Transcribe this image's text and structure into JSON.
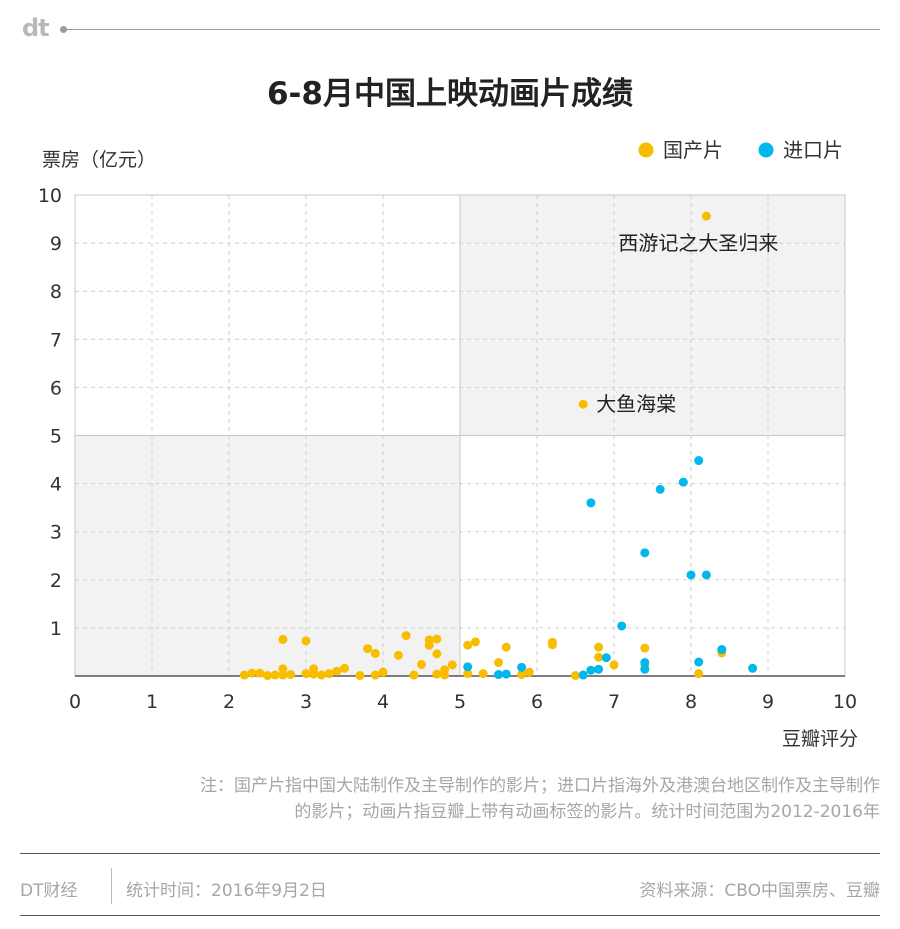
{
  "brand": "dt",
  "title": "6-8月中国上映动画片成绩",
  "note_line1": "注：国产片指中国大陆制作及主导制作的影片；进口片指海外及港澳台地区制作及主导制作",
  "note_line2": "的影片；动画片指豆瓣上带有动画标签的影片。统计时间范围为2012-2016年",
  "footer": {
    "source_left": "DT财经",
    "stat_time": "统计时间：2016年9月2日",
    "data_source": "资料来源：CBO中国票房、豆瓣"
  },
  "colors": {
    "domestic": "#f9bd00",
    "imported": "#00b8ec",
    "shade": "#f2f2f2"
  },
  "chart_data": {
    "type": "scatter",
    "xlabel": "豆瓣评分",
    "ylabel": "票房（亿元）",
    "xlim": [
      0,
      10
    ],
    "ylim": [
      0,
      10
    ],
    "xticks": [
      "0",
      "1",
      "2",
      "3",
      "4",
      "5",
      "6",
      "7",
      "8",
      "9",
      "10"
    ],
    "yticks": [
      "1",
      "2",
      "3",
      "4",
      "5",
      "6",
      "7",
      "8",
      "9",
      "10"
    ],
    "grid": true,
    "legend_position": "top-right",
    "shaded_quadrants": [
      "x 0-5, y 0-5",
      "x 5-10, y 5-10"
    ],
    "series": [
      {
        "name": "国产片",
        "color": "#f9bd00",
        "points": [
          [
            8.2,
            9.56
          ],
          [
            6.6,
            5.65
          ],
          [
            2.2,
            0.02
          ],
          [
            2.3,
            0.06
          ],
          [
            2.4,
            0.06
          ],
          [
            2.5,
            0.01
          ],
          [
            2.6,
            0.02
          ],
          [
            2.7,
            0.15
          ],
          [
            2.7,
            0.76
          ],
          [
            2.7,
            0.02
          ],
          [
            2.8,
            0.03
          ],
          [
            3.0,
            0.73
          ],
          [
            3.0,
            0.05
          ],
          [
            3.1,
            0.04
          ],
          [
            3.1,
            0.15
          ],
          [
            3.2,
            0.02
          ],
          [
            3.3,
            0.05
          ],
          [
            3.4,
            0.1
          ],
          [
            3.5,
            0.16
          ],
          [
            3.7,
            0.01
          ],
          [
            3.8,
            0.57
          ],
          [
            3.9,
            0.47
          ],
          [
            3.9,
            0.02
          ],
          [
            4.0,
            0.08
          ],
          [
            4.2,
            0.43
          ],
          [
            4.3,
            0.84
          ],
          [
            4.4,
            0.02
          ],
          [
            4.5,
            0.24
          ],
          [
            4.6,
            0.75
          ],
          [
            4.6,
            0.64
          ],
          [
            4.7,
            0.77
          ],
          [
            4.7,
            0.46
          ],
          [
            4.7,
            0.04
          ],
          [
            4.8,
            0.13
          ],
          [
            4.8,
            0.02
          ],
          [
            4.9,
            0.23
          ],
          [
            5.1,
            0.64
          ],
          [
            5.1,
            0.05
          ],
          [
            5.2,
            0.71
          ],
          [
            5.3,
            0.05
          ],
          [
            5.5,
            0.28
          ],
          [
            5.6,
            0.6
          ],
          [
            5.8,
            0.03
          ],
          [
            5.9,
            0.08
          ],
          [
            6.2,
            0.7
          ],
          [
            6.2,
            0.65
          ],
          [
            6.5,
            0.01
          ],
          [
            6.8,
            0.6
          ],
          [
            6.8,
            0.39
          ],
          [
            7.0,
            0.23
          ],
          [
            7.4,
            0.58
          ],
          [
            7.4,
            0.23
          ],
          [
            8.1,
            0.05
          ],
          [
            8.4,
            0.48
          ]
        ]
      },
      {
        "name": "进口片",
        "color": "#00b8ec",
        "points": [
          [
            8.1,
            4.48
          ],
          [
            7.9,
            4.03
          ],
          [
            7.6,
            3.88
          ],
          [
            6.7,
            3.6
          ],
          [
            7.4,
            2.56
          ],
          [
            8.0,
            2.1
          ],
          [
            8.2,
            2.1
          ],
          [
            7.1,
            1.04
          ],
          [
            8.4,
            0.55
          ],
          [
            6.9,
            0.38
          ],
          [
            7.4,
            0.28
          ],
          [
            8.1,
            0.29
          ],
          [
            8.8,
            0.16
          ],
          [
            7.4,
            0.14
          ],
          [
            6.7,
            0.12
          ],
          [
            6.8,
            0.14
          ],
          [
            6.6,
            0.02
          ],
          [
            5.8,
            0.18
          ],
          [
            5.1,
            0.19
          ],
          [
            5.5,
            0.03
          ],
          [
            5.6,
            0.04
          ]
        ]
      }
    ],
    "annotations": [
      {
        "text": "西游记之大圣归来",
        "x": 8.2,
        "y": 9.56
      },
      {
        "text": "大鱼海棠",
        "x": 6.6,
        "y": 5.65
      }
    ]
  }
}
